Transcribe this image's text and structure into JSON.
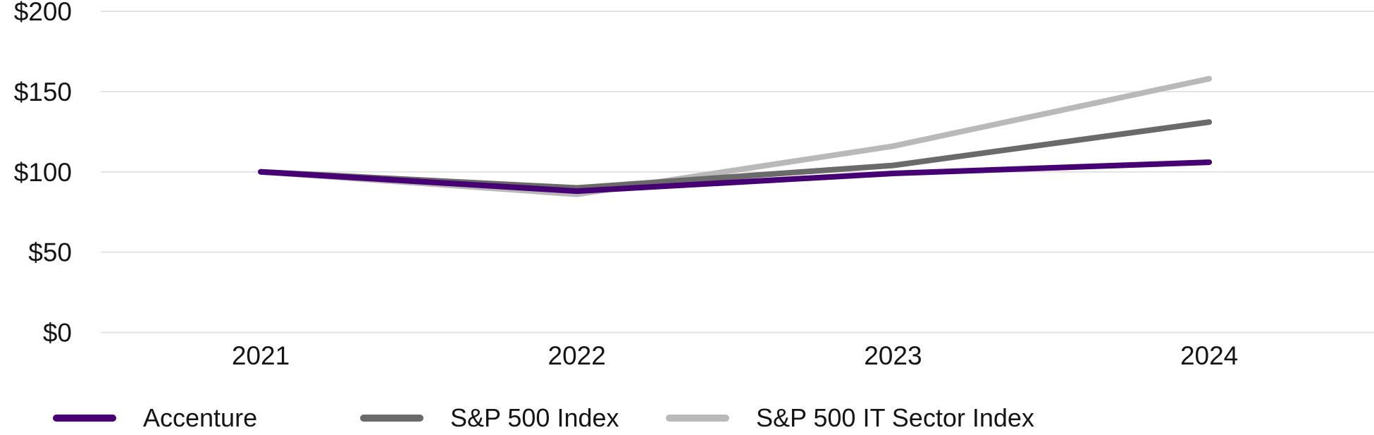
{
  "chart_data": {
    "type": "line",
    "title": "",
    "xlabel": "",
    "ylabel": "",
    "x_labels": [
      "2021",
      "2022",
      "2023",
      "2024"
    ],
    "y_ticks": [
      {
        "label": "$0",
        "value": 0
      },
      {
        "label": "$50",
        "value": 50
      },
      {
        "label": "$100",
        "value": 100
      },
      {
        "label": "$150",
        "value": 150
      },
      {
        "label": "$200",
        "value": 200
      }
    ],
    "ylim": [
      0,
      200
    ],
    "grid": true,
    "legend_position": "bottom-left",
    "series": [
      {
        "name": "Accenture",
        "color": "#460073",
        "values": [
          100,
          88,
          99,
          106
        ]
      },
      {
        "name": "S&P 500 Index",
        "color": "#6A6A6A",
        "values": [
          100,
          90,
          104,
          131
        ]
      },
      {
        "name": "S&P 500 IT Sector Index",
        "color": "#B9B9B9",
        "values": [
          100,
          86,
          116,
          158
        ]
      }
    ]
  },
  "colors": {
    "background": "#FFFFFF",
    "gridline": "#E2E2E2",
    "text": "#151515"
  }
}
